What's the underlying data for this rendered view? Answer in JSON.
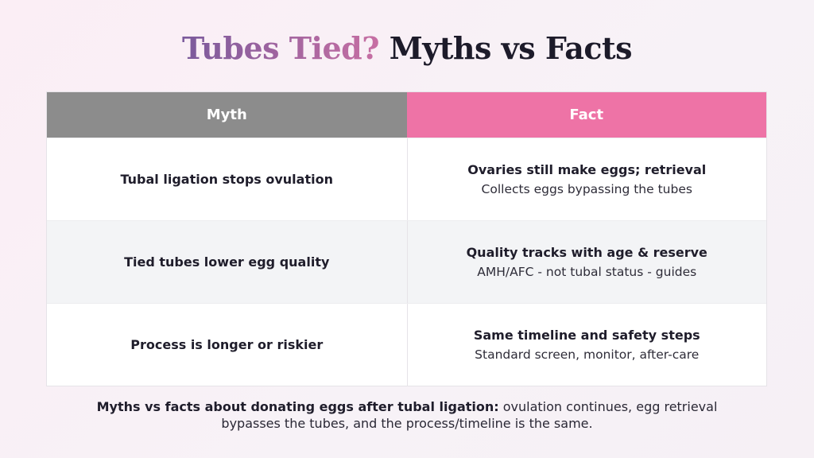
{
  "title": {
    "accent": "Tubes Tied?",
    "rest": "Myths vs Facts"
  },
  "table": {
    "headers": {
      "myth": "Myth",
      "fact": "Fact"
    },
    "rows": [
      {
        "myth": "Tubal ligation stops ovulation",
        "fact_title": "Ovaries still make eggs; retrieval",
        "fact_sub": "Collects eggs bypassing the tubes"
      },
      {
        "myth": "Tied tubes lower egg quality",
        "fact_title": "Quality tracks with age & reserve",
        "fact_sub": "AMH/AFC - not tubal status - guides"
      },
      {
        "myth": "Process is longer or riskier",
        "fact_title": "Same timeline and safety steps",
        "fact_sub": "Standard screen, monitor, after-care"
      }
    ]
  },
  "caption": {
    "bold": "Myths vs facts about donating eggs after tubal ligation:",
    "text": " ovulation continues, egg retrieval bypasses the tubes, and the process/timeline is the same."
  },
  "colors": {
    "myth_header": "#8c8c8c",
    "fact_header": "#ee73a6",
    "title_accent_start": "#7a5a9c",
    "title_accent_end": "#c76fa3"
  }
}
